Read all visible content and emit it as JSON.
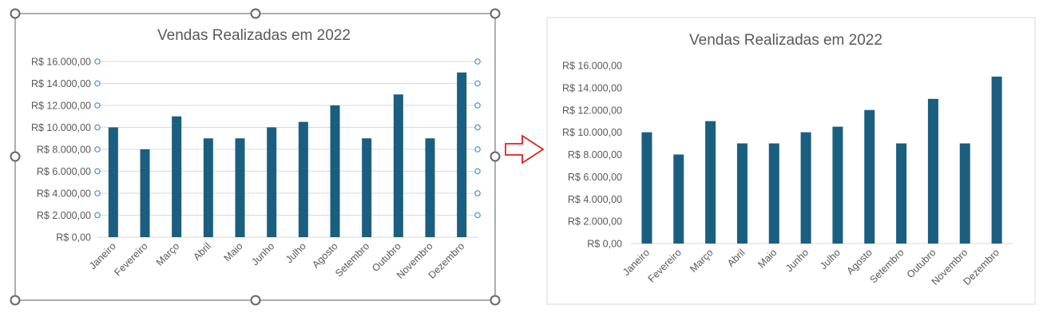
{
  "chart_data": [
    {
      "type": "bar",
      "state": "selected",
      "title": "Vendas Realizadas em 2022",
      "categories": [
        "Janeiro",
        "Fevereiro",
        "Março",
        "Abril",
        "Maio",
        "Junho",
        "Julho",
        "Agosto",
        "Setembro",
        "Outubro",
        "Novembro",
        "Dezembro"
      ],
      "values": [
        10000,
        8000,
        11000,
        9000,
        9000,
        10000,
        10500,
        12000,
        9000,
        13000,
        9000,
        15000
      ],
      "yticks": [
        "R$ 0,00",
        "R$ 2.000,00",
        "R$ 4.000,00",
        "R$ 6.000,00",
        "R$ 8.000,00",
        "R$ 10.000,00",
        "R$ 12.000,00",
        "R$ 14.000,00",
        "R$ 16.000,00"
      ],
      "ylim": [
        0,
        16000
      ],
      "grid": true,
      "xlabel": "",
      "ylabel": "",
      "bar_color": "#1a5e80"
    },
    {
      "type": "bar",
      "state": "unselected",
      "title": "Vendas Realizadas em 2022",
      "categories": [
        "Janeiro",
        "Fevereiro",
        "Março",
        "Abril",
        "Maio",
        "Junho",
        "Julho",
        "Agosto",
        "Setembro",
        "Outubro",
        "Novembro",
        "Dezembro"
      ],
      "values": [
        10000,
        8000,
        11000,
        9000,
        9000,
        10000,
        10500,
        12000,
        9000,
        13000,
        9000,
        15000
      ],
      "yticks": [
        "R$ 0,00",
        "R$ 2.000,00",
        "R$ 4.000,00",
        "R$ 6.000,00",
        "R$ 8.000,00",
        "R$ 10.000,00",
        "R$ 12.000,00",
        "R$ 14.000,00",
        "R$ 16.000,00"
      ],
      "ylim": [
        0,
        16000
      ],
      "grid": false,
      "xlabel": "",
      "ylabel": "",
      "bar_color": "#1a5e80"
    }
  ],
  "arrow": {
    "icon": "right-arrow-icon",
    "color": "#e02020"
  }
}
